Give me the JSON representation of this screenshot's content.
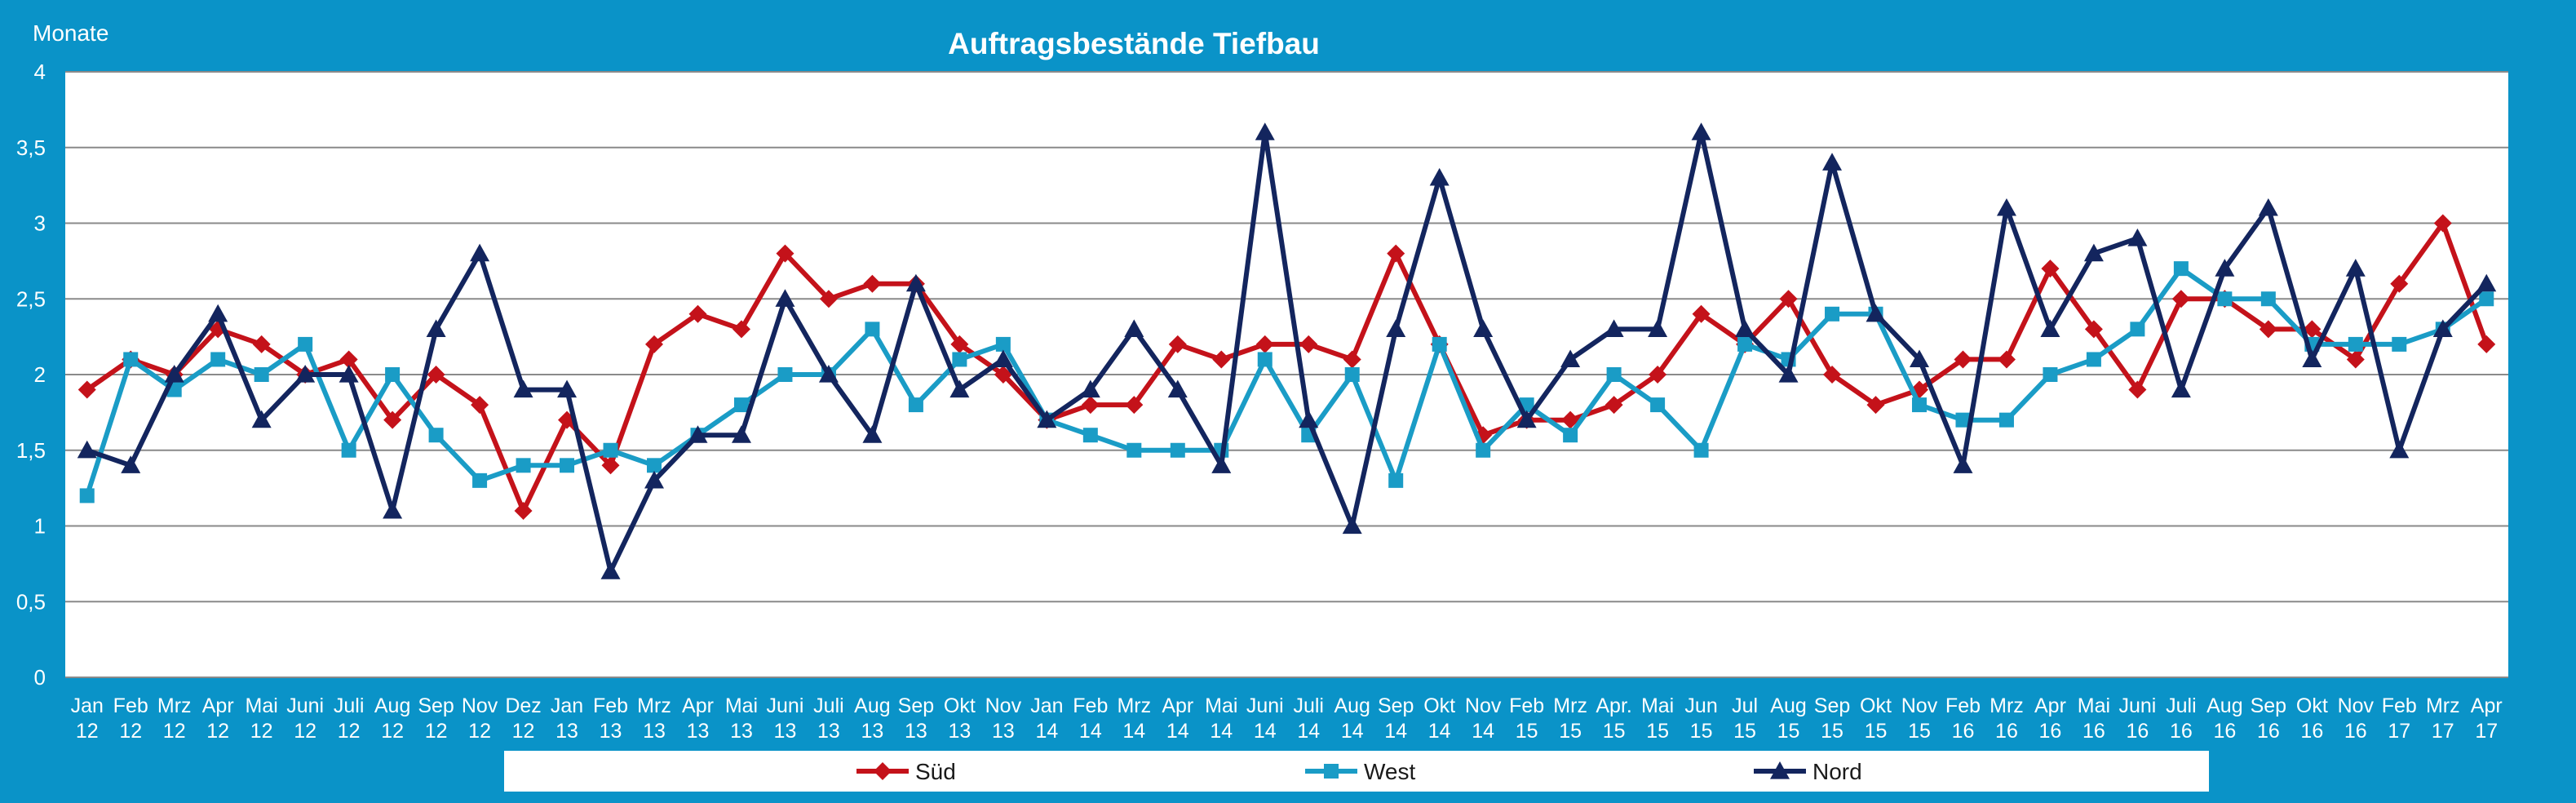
{
  "chart_data": {
    "type": "line",
    "title": "Auftragsbestände Tiefbau",
    "ylabel": "Monate",
    "ylim": [
      0,
      4
    ],
    "yticks": [
      "0",
      "0,5",
      "1",
      "1,5",
      "2",
      "2,5",
      "3",
      "3,5",
      "4"
    ],
    "grid": true,
    "legend_position": "bottom",
    "colors": {
      "background": "#0a93c8",
      "plot": "#ffffff",
      "grid": "#8a8a8a",
      "text": "#ffffff"
    },
    "categories": [
      [
        "Jan",
        "12"
      ],
      [
        "Feb",
        "12"
      ],
      [
        "Mrz",
        "12"
      ],
      [
        "Apr",
        "12"
      ],
      [
        "Mai",
        "12"
      ],
      [
        "Juni",
        "12"
      ],
      [
        "Juli",
        "12"
      ],
      [
        "Aug",
        "12"
      ],
      [
        "Sep",
        "12"
      ],
      [
        "Nov",
        "12"
      ],
      [
        "Dez",
        "12"
      ],
      [
        "Jan",
        "13"
      ],
      [
        "Feb",
        "13"
      ],
      [
        "Mrz",
        "13"
      ],
      [
        "Apr",
        "13"
      ],
      [
        "Mai",
        "13"
      ],
      [
        "Juni",
        "13"
      ],
      [
        "Juli",
        "13"
      ],
      [
        "Aug",
        "13"
      ],
      [
        "Sep",
        "13"
      ],
      [
        "Okt",
        "13"
      ],
      [
        "Nov",
        "13"
      ],
      [
        "Jan",
        "14"
      ],
      [
        "Feb",
        "14"
      ],
      [
        "Mrz",
        "14"
      ],
      [
        "Apr",
        "14"
      ],
      [
        "Mai",
        "14"
      ],
      [
        "Juni",
        "14"
      ],
      [
        "Juli",
        "14"
      ],
      [
        "Aug",
        "14"
      ],
      [
        "Sep",
        "14"
      ],
      [
        "Okt",
        "14"
      ],
      [
        "Nov",
        "14"
      ],
      [
        "Feb",
        "15"
      ],
      [
        "Mrz",
        "15"
      ],
      [
        "Apr.",
        "15"
      ],
      [
        "Mai",
        "15"
      ],
      [
        "Jun",
        "15"
      ],
      [
        "Jul",
        "15"
      ],
      [
        "Aug",
        "15"
      ],
      [
        "Sep",
        "15"
      ],
      [
        "Okt",
        "15"
      ],
      [
        "Nov",
        "15"
      ],
      [
        "Feb",
        "16"
      ],
      [
        "Mrz",
        "16"
      ],
      [
        "Apr",
        "16"
      ],
      [
        "Mai",
        "16"
      ],
      [
        "Juni",
        "16"
      ],
      [
        "Juli",
        "16"
      ],
      [
        "Aug",
        "16"
      ],
      [
        "Sep",
        "16"
      ],
      [
        "Okt",
        "16"
      ],
      [
        "Nov",
        "16"
      ],
      [
        "Feb",
        "17"
      ],
      [
        "Mrz",
        "17"
      ],
      [
        "Apr",
        "17"
      ]
    ],
    "series": [
      {
        "name": "Süd",
        "color": "#c4121a",
        "marker": "diamond",
        "values": [
          1.9,
          2.1,
          2.0,
          2.3,
          2.2,
          2.0,
          2.1,
          1.7,
          2.0,
          1.8,
          1.1,
          1.7,
          1.4,
          2.2,
          2.4,
          2.3,
          2.8,
          2.5,
          2.6,
          2.6,
          2.2,
          2.0,
          1.7,
          1.8,
          1.8,
          2.2,
          2.1,
          2.2,
          2.2,
          2.1,
          2.8,
          2.2,
          1.6,
          1.7,
          1.7,
          1.8,
          2.0,
          2.4,
          2.2,
          2.5,
          2.0,
          1.8,
          1.9,
          2.1,
          2.1,
          2.7,
          2.3,
          1.9,
          2.5,
          2.5,
          2.3,
          2.3,
          2.1,
          2.6,
          3.0,
          2.2
        ]
      },
      {
        "name": "West",
        "color": "#1a9cc6",
        "marker": "square",
        "values": [
          1.2,
          2.1,
          1.9,
          2.1,
          2.0,
          2.2,
          1.5,
          2.0,
          1.6,
          1.3,
          1.4,
          1.4,
          1.5,
          1.4,
          1.6,
          1.8,
          2.0,
          2.0,
          2.3,
          1.8,
          2.1,
          2.2,
          1.7,
          1.6,
          1.5,
          1.5,
          1.5,
          2.1,
          1.6,
          2.0,
          1.3,
          2.2,
          1.5,
          1.8,
          1.6,
          2.0,
          1.8,
          1.5,
          2.2,
          2.1,
          2.4,
          2.4,
          1.8,
          1.7,
          1.7,
          2.0,
          2.1,
          2.3,
          2.7,
          2.5,
          2.5,
          2.2,
          2.2,
          2.2,
          2.3,
          2.5
        ]
      },
      {
        "name": "Nord",
        "color": "#13255e",
        "marker": "triangle",
        "values": [
          1.5,
          1.4,
          2.0,
          2.4,
          1.7,
          2.0,
          2.0,
          1.1,
          2.3,
          2.8,
          1.9,
          1.9,
          0.7,
          1.3,
          1.6,
          1.6,
          2.5,
          2.0,
          1.6,
          2.6,
          1.9,
          2.1,
          1.7,
          1.9,
          2.3,
          1.9,
          1.4,
          3.6,
          1.7,
          1.0,
          2.3,
          3.3,
          2.3,
          1.7,
          2.1,
          2.3,
          2.3,
          3.6,
          2.3,
          2.0,
          3.4,
          2.4,
          2.1,
          1.4,
          3.1,
          2.3,
          2.8,
          2.9,
          1.9,
          2.7,
          3.1,
          2.1,
          2.7,
          1.5,
          2.3,
          2.6
        ]
      }
    ]
  }
}
